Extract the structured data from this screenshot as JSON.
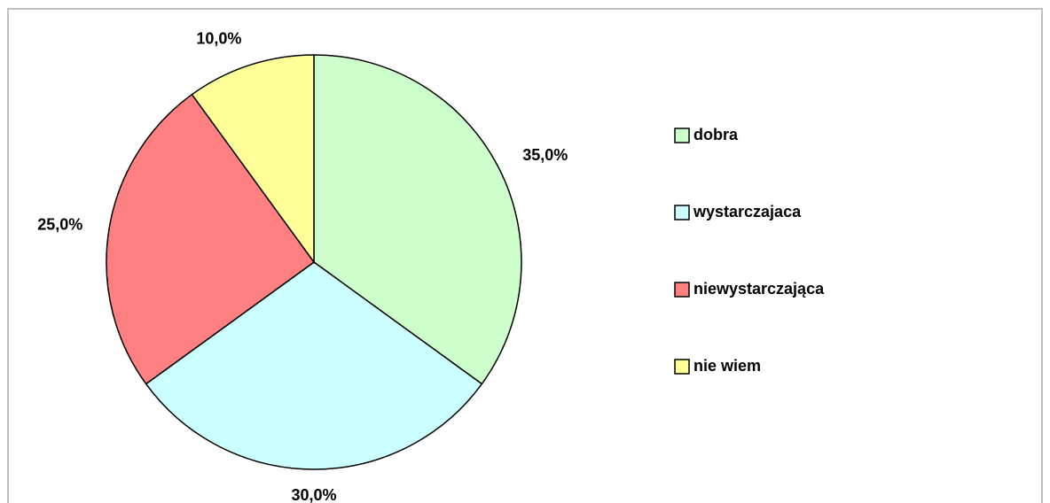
{
  "chart_data": {
    "type": "pie",
    "categories": [
      "dobra",
      "wystarczajaca",
      "niewystarczająca",
      "nie wiem"
    ],
    "values": [
      35,
      30,
      25,
      10
    ],
    "value_labels": [
      "35,0%",
      "30,0%",
      "25,0%",
      "10,0%"
    ],
    "colors": [
      "#ccffcc",
      "#ccffff",
      "#ff8080",
      "#ffff99"
    ],
    "legend": "right"
  }
}
